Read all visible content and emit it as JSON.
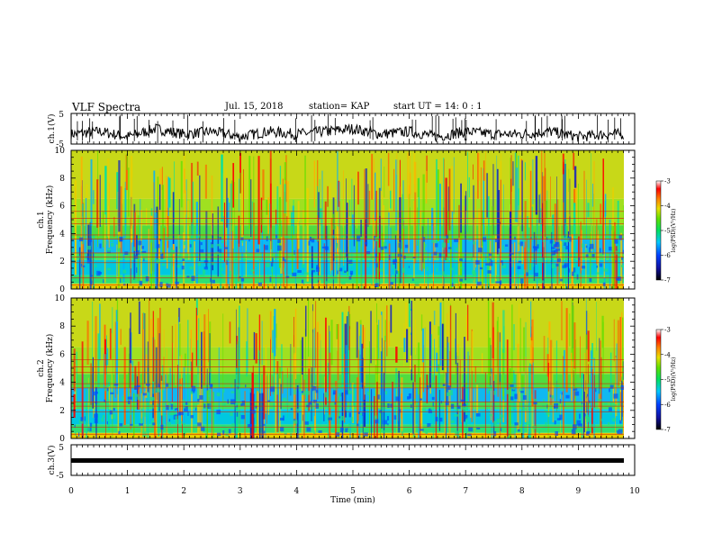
{
  "header": {
    "title": "VLF Spectra",
    "date": "Jul. 15, 2018",
    "station": "station= KAP",
    "start": "start UT =  14: 0 : 1"
  },
  "chart_data": [
    {
      "type": "line",
      "panel": "ch1-waveform",
      "ylabel": "ch.1(V)",
      "ylim": [
        -5,
        5
      ],
      "yticks": [
        "5",
        "-5"
      ],
      "xlim": [
        0,
        10
      ],
      "series": [
        {
          "x": [
            0,
            0.5,
            1,
            1.5,
            2,
            2.5,
            3,
            3.5,
            4,
            4.5,
            5,
            5.5,
            6,
            6.5,
            7,
            7.5,
            8,
            8.5,
            9,
            9.5,
            9.8
          ],
          "values": [
            -2,
            -1,
            -3,
            0,
            -2,
            -1,
            -3,
            -1,
            -2,
            -1,
            0,
            -2,
            -1,
            -3,
            -1,
            -2,
            -2,
            -1,
            -3,
            -2,
            -2
          ]
        }
      ],
      "color": "#000000"
    },
    {
      "type": "heatmap",
      "panel": "ch1-spectrogram",
      "ylabel": "ch.1\nFrequency (kHz)",
      "ylim": [
        0,
        10
      ],
      "yticks": [
        "0",
        "2",
        "4",
        "6",
        "8",
        "10"
      ],
      "xlim": [
        0,
        10
      ],
      "colorbar": {
        "label": "log(PSD)(V²/Hz)",
        "range": [
          -7,
          -3
        ],
        "ticks": [
          "-3",
          "-4",
          "-5",
          "-6",
          "-7"
        ]
      }
    },
    {
      "type": "heatmap",
      "panel": "ch2-spectrogram",
      "ylabel": "ch.2\nFrequency (kHz)",
      "ylim": [
        0,
        10
      ],
      "yticks": [
        "0",
        "2",
        "4",
        "6",
        "8",
        "10"
      ],
      "xlim": [
        0,
        10
      ],
      "colorbar": {
        "label": "log(PSD)(V²/Hz)",
        "range": [
          -7,
          -3
        ],
        "ticks": [
          "-3",
          "-4",
          "-5",
          "-6",
          "-7"
        ]
      }
    },
    {
      "type": "line",
      "panel": "ch3-waveform",
      "ylabel": "ch.3(V)",
      "ylim": [
        -5,
        5
      ],
      "yticks": [
        "5",
        "-5"
      ],
      "xlim": [
        0,
        10
      ],
      "series": [
        {
          "x": [
            0,
            9.8
          ],
          "values": [
            0,
            0
          ]
        }
      ],
      "color": "#000000"
    }
  ],
  "xaxis": {
    "label": "Time (min)",
    "ticks": [
      "0",
      "1",
      "2",
      "3",
      "4",
      "5",
      "6",
      "7",
      "8",
      "9",
      "10"
    ]
  }
}
